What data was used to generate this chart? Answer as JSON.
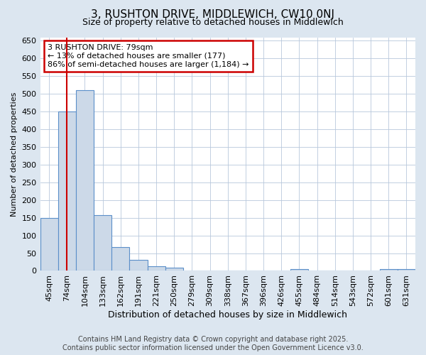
{
  "title": "3, RUSHTON DRIVE, MIDDLEWICH, CW10 0NJ",
  "subtitle": "Size of property relative to detached houses in Middlewich",
  "xlabel": "Distribution of detached houses by size in Middlewich",
  "ylabel": "Number of detached properties",
  "categories": [
    "45sqm",
    "74sqm",
    "104sqm",
    "133sqm",
    "162sqm",
    "191sqm",
    "221sqm",
    "250sqm",
    "279sqm",
    "309sqm",
    "338sqm",
    "367sqm",
    "396sqm",
    "426sqm",
    "455sqm",
    "484sqm",
    "514sqm",
    "543sqm",
    "572sqm",
    "601sqm",
    "631sqm"
  ],
  "values": [
    150,
    450,
    510,
    158,
    68,
    31,
    13,
    8,
    0,
    0,
    0,
    0,
    0,
    0,
    5,
    0,
    0,
    0,
    0,
    4,
    5
  ],
  "bar_color": "#ccd9e8",
  "bar_edge_color": "#5b8fc9",
  "vline_x_index": 1,
  "vline_color": "#cc0000",
  "annotation_text": "3 RUSHTON DRIVE: 79sqm\n← 13% of detached houses are smaller (177)\n86% of semi-detached houses are larger (1,184) →",
  "annotation_box_color": "#cc0000",
  "annotation_box_fill": "#ffffff",
  "ylim": [
    0,
    660
  ],
  "yticks": [
    0,
    50,
    100,
    150,
    200,
    250,
    300,
    350,
    400,
    450,
    500,
    550,
    600,
    650
  ],
  "footer_line1": "Contains HM Land Registry data © Crown copyright and database right 2025.",
  "footer_line2": "Contains public sector information licensed under the Open Government Licence v3.0.",
  "bg_color": "#dce6f0",
  "plot_bg_color": "#ffffff",
  "title_fontsize": 11,
  "subtitle_fontsize": 9,
  "xlabel_fontsize": 9,
  "ylabel_fontsize": 8,
  "tick_fontsize": 8,
  "annotation_fontsize": 8,
  "footer_fontsize": 7
}
